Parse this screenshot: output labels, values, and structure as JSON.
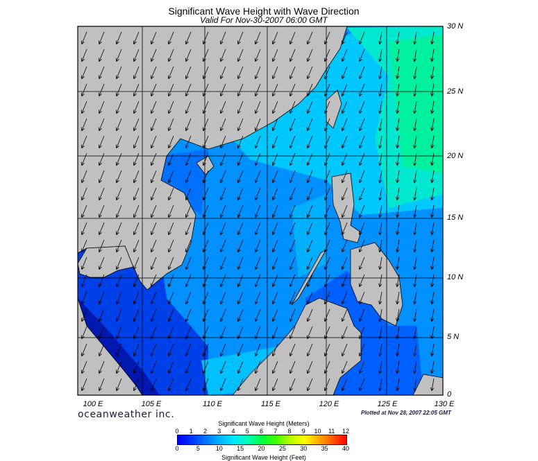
{
  "title": "Significant Wave Height with Wave Direction",
  "subtitle": "Valid For Nov-30-2007 06:00 GMT",
  "lat_labels": [
    "30 N",
    "25 N",
    "20 N",
    "15 N",
    "10 N",
    "5 N",
    "0"
  ],
  "lon_labels": [
    "100 E",
    "105 E",
    "110 E",
    "115 E",
    "120 E",
    "125 E",
    "130 E"
  ],
  "brand": "oceanweather inc.",
  "plotted": "Plotted at Nov 28, 2007 22:05 GMT",
  "colorbar": {
    "title_meters": "Significant Wave Height (Meters)",
    "title_feet": "Significant Wave Height (Feet)",
    "meters_ticks": [
      "0",
      "1",
      "2",
      "3",
      "4",
      "5",
      "6",
      "7",
      "8",
      "9",
      "10",
      "11",
      "12"
    ],
    "feet_ticks": [
      "0",
      "5",
      "10",
      "15",
      "20",
      "25",
      "30",
      "35",
      "40"
    ]
  },
  "map_extent": {
    "lon": [
      100,
      130
    ],
    "lat": [
      0,
      30
    ]
  },
  "colors": {
    "land": "#c0c0c0",
    "deep_blue": "#0030e0",
    "sea_blue": "#0090ff",
    "cyan": "#00d8ff",
    "green_cyan": "#00f0a0",
    "dark_sea": "#000080"
  }
}
